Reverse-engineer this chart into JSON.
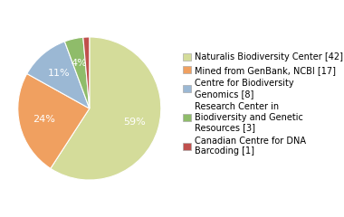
{
  "labels": [
    "Naturalis Biodiversity Center [42]",
    "Mined from GenBank, NCBI [17]",
    "Centre for Biodiversity\nGenomics [8]",
    "Research Center in\nBiodiversity and Genetic\nResources [3]",
    "Canadian Centre for DNA\nBarcoding [1]"
  ],
  "values": [
    42,
    17,
    8,
    3,
    1
  ],
  "colors": [
    "#d4dc9a",
    "#f0a060",
    "#9bb8d4",
    "#8fbc6a",
    "#c0504d"
  ],
  "background_color": "#ffffff",
  "text_color": "#333333",
  "fontsize_pct": 8.0,
  "fontsize_legend": 7.0
}
